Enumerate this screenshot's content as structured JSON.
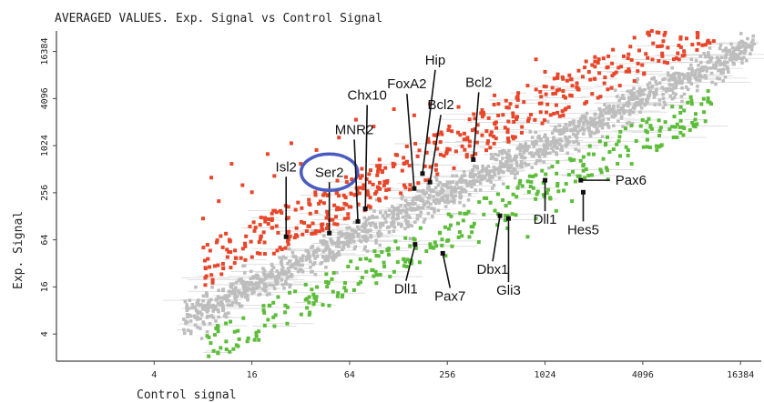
{
  "chart_data": {
    "type": "scatter",
    "title": "AVERAGED VALUES. Exp. Signal vs Control Signal",
    "xlabel": "Control signal",
    "ylabel": "Exp. Signal",
    "xscale": "log2",
    "yscale": "log2",
    "xlim": [
      1,
      22000
    ],
    "ylim": [
      1.8,
      30000
    ],
    "x_ticks": [
      4,
      16,
      64,
      256,
      1024,
      4096,
      16384
    ],
    "y_ticks": [
      4,
      16,
      64,
      256,
      1024,
      4096,
      16384
    ],
    "x_tick_labels": [
      "4",
      "16",
      "64",
      "256",
      "1024",
      "4096",
      "16384"
    ],
    "y_tick_labels": [
      "4",
      "16",
      "64",
      "256",
      "1024",
      "4096",
      "16384"
    ],
    "grid": false,
    "legend": "none",
    "colors": {
      "unchanged": "#bdbdbd",
      "error_bars": "#d9d9d9",
      "up_regulated": "#e8462a",
      "down_regulated": "#5cbd3a",
      "highlight_circle": "#4a5bbf"
    },
    "series": [
      {
        "category": "unchanged",
        "band": {
          "x_range": [
            6,
            20000
          ],
          "log2_ratio_sd": 0.35
        }
      },
      {
        "category": "up_regulated",
        "points": [
          [
            8,
            120
          ],
          [
            9,
            400
          ],
          [
            10,
            200
          ],
          [
            12,
            600
          ],
          [
            14,
            320
          ],
          [
            16,
            260
          ],
          [
            20,
            800
          ],
          [
            22,
            420
          ],
          [
            24,
            150
          ],
          [
            28,
            1100
          ],
          [
            32,
            600
          ],
          [
            40,
            900
          ],
          [
            45,
            250
          ],
          [
            55,
            1300
          ],
          [
            70,
            2200
          ],
          [
            90,
            1800
          ],
          [
            120,
            3000
          ],
          [
            160,
            2500
          ],
          [
            200,
            3500
          ],
          [
            300,
            3200
          ],
          [
            500,
            4500
          ],
          [
            800,
            6000
          ],
          [
            1024,
            9000
          ],
          [
            2000,
            11000
          ],
          [
            900,
            13000
          ]
        ]
      },
      {
        "category": "down_regulated",
        "points": [
          [
            40,
            12
          ],
          [
            60,
            18
          ],
          [
            90,
            22
          ],
          [
            150,
            35
          ],
          [
            250,
            40
          ],
          [
            400,
            60
          ],
          [
            600,
            90
          ],
          [
            900,
            120
          ],
          [
            1500,
            200
          ],
          [
            2500,
            380
          ],
          [
            3500,
            600
          ],
          [
            5000,
            900
          ],
          [
            7000,
            1500
          ],
          [
            1200,
            150
          ],
          [
            800,
            70
          ]
        ]
      }
    ],
    "annotations": [
      {
        "label": "Isl2",
        "x": 26,
        "y": 70
      },
      {
        "label": "Ser2",
        "x": 48,
        "y": 78
      },
      {
        "label": "MNR2",
        "x": 72,
        "y": 110
      },
      {
        "label": "Chx10",
        "x": 80,
        "y": 160
      },
      {
        "label": "FoxA2",
        "x": 160,
        "y": 290
      },
      {
        "label": "Hip",
        "x": 180,
        "y": 450
      },
      {
        "label": "Bcl2",
        "x": 200,
        "y": 350
      },
      {
        "label": "Bcl2",
        "x": 370,
        "y": 680
      },
      {
        "label": "Pax6",
        "x": 1700,
        "y": 370
      },
      {
        "label": "Hes5",
        "x": 1760,
        "y": 260
      },
      {
        "label": "Dll1",
        "x": 1024,
        "y": 370
      },
      {
        "label": "Dbx1",
        "x": 540,
        "y": 130
      },
      {
        "label": "Gli3",
        "x": 610,
        "y": 120
      },
      {
        "label": "Dll1",
        "x": 162,
        "y": 56
      },
      {
        "label": "Pax7",
        "x": 240,
        "y": 43
      }
    ],
    "highlight": {
      "label": "Ser2",
      "shape": "ellipse"
    }
  }
}
